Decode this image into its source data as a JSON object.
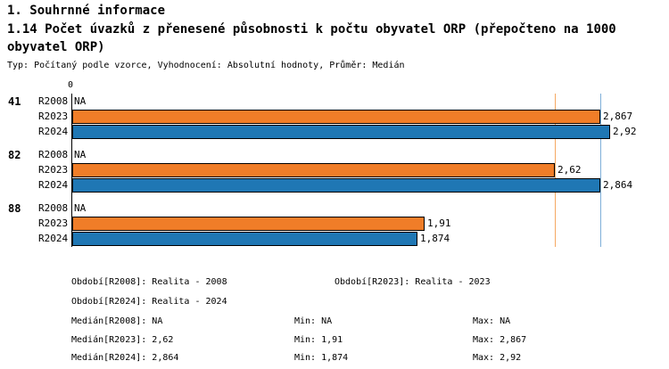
{
  "header": {
    "title": "1. Souhrnné informace",
    "subtitle": "1.14 Počet úvazků z přenesené působnosti k počtu obyvatel ORP (přepočteno na 1000 obyvatel ORP)",
    "meta": "Typ: Počítaný podle vzorce, Vyhodnocení: Absolutní hodnoty, Průměr: Medián"
  },
  "chart_data": {
    "type": "bar",
    "orientation": "horizontal",
    "title": "1.14 Počet úvazků z přenesené působnosti k počtu obyvatel ORP (přepočteno na 1000 obyvatel ORP)",
    "categories": [
      "41",
      "82",
      "88"
    ],
    "series": [
      {
        "name": "R2008",
        "values": [
          null,
          null,
          null
        ],
        "labels": [
          "NA",
          "NA",
          "NA"
        ],
        "color": null
      },
      {
        "name": "R2023",
        "values": [
          2.867,
          2.62,
          1.91
        ],
        "labels": [
          "2,867",
          "2,62",
          "1,91"
        ],
        "color": "#F07D28"
      },
      {
        "name": "R2024",
        "values": [
          2.92,
          2.864,
          1.874
        ],
        "labels": [
          "2,92",
          "2,864",
          "1,874"
        ],
        "color": "#1F77B4"
      }
    ],
    "xlim": [
      0,
      3.2
    ],
    "zero_label": "0",
    "grid": false,
    "median_lines": [
      {
        "name": "median-R2023",
        "value": 2.62,
        "color": "#F5A963"
      },
      {
        "name": "median-R2024",
        "value": 2.864,
        "color": "#7FAFD9"
      }
    ]
  },
  "footer": {
    "obdobi_r2008": "Období[R2008]: Realita - 2008",
    "obdobi_r2023": "Období[R2023]: Realita - 2023",
    "obdobi_r2024": "Období[R2024]: Realita - 2024",
    "median_r2008": "Medián[R2008]: NA",
    "min_r2008": "Min: NA",
    "max_r2008": "Max: NA",
    "median_r2023": "Medián[R2023]: 2,62",
    "min_r2023": "Min: 1,91",
    "max_r2023": "Max: 2,867",
    "median_r2024": "Medián[R2024]: 2,864",
    "min_r2024": "Min: 1,874",
    "max_r2024": "Max: 2,92"
  }
}
